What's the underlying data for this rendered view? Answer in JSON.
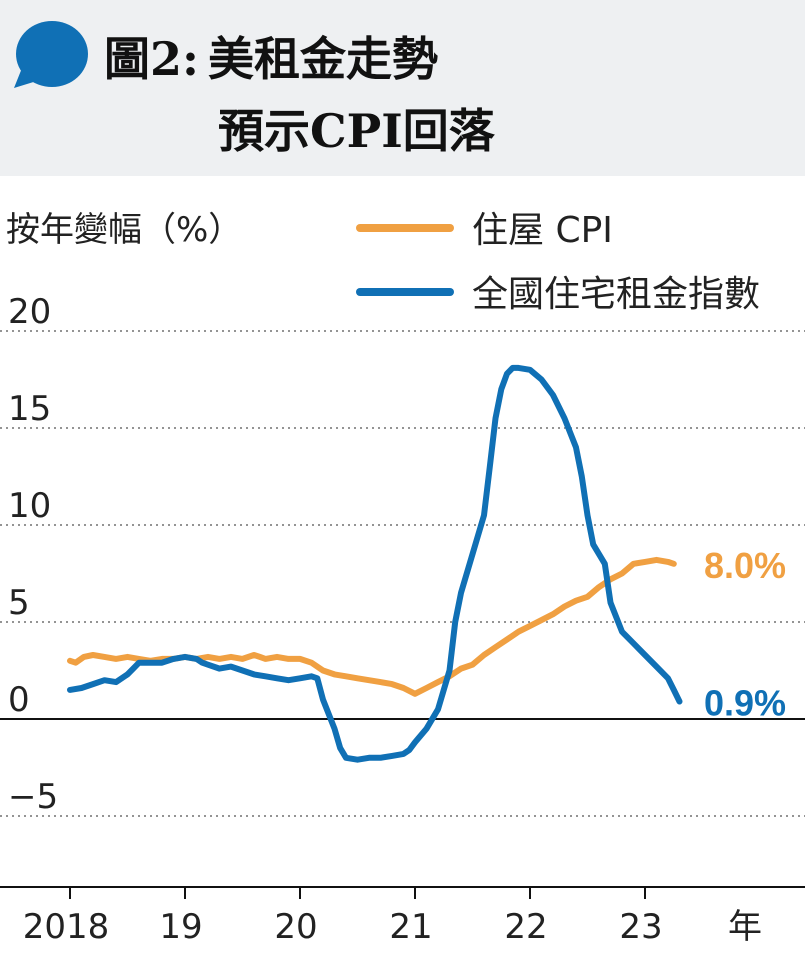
{
  "header": {
    "figure_label": "圖2:",
    "title_line1": "美租金走勢",
    "title_line2": "預示CPI回落"
  },
  "chart_data": {
    "type": "line",
    "ylabel": "按年變幅（%）",
    "xlabel": "年",
    "ylim": [
      -8.5,
      20
    ],
    "yticks": [
      20,
      15,
      10,
      5,
      0,
      -5
    ],
    "ytick_labels": [
      "20",
      "15",
      "10",
      "5",
      "0",
      "−5"
    ],
    "xlim": [
      2018,
      2024.2
    ],
    "xticks": [
      2018,
      2019,
      2020,
      2021,
      2022,
      2023
    ],
    "xtick_labels": [
      "2018",
      "19",
      "20",
      "21",
      "22",
      "23"
    ],
    "grid": "horizontal-dotted",
    "legend": "top-right",
    "series": [
      {
        "name": "住屋 CPI",
        "color": "#F0A042",
        "end_label": "8.0%",
        "points": [
          [
            2018.0,
            3.0
          ],
          [
            2018.05,
            2.9
          ],
          [
            2018.12,
            3.2
          ],
          [
            2018.2,
            3.3
          ],
          [
            2018.3,
            3.2
          ],
          [
            2018.4,
            3.1
          ],
          [
            2018.5,
            3.2
          ],
          [
            2018.6,
            3.1
          ],
          [
            2018.7,
            3.0
          ],
          [
            2018.8,
            3.1
          ],
          [
            2018.9,
            3.1
          ],
          [
            2019.0,
            3.2
          ],
          [
            2019.1,
            3.1
          ],
          [
            2019.2,
            3.2
          ],
          [
            2019.3,
            3.1
          ],
          [
            2019.4,
            3.2
          ],
          [
            2019.5,
            3.1
          ],
          [
            2019.6,
            3.3
          ],
          [
            2019.65,
            3.2
          ],
          [
            2019.7,
            3.1
          ],
          [
            2019.8,
            3.2
          ],
          [
            2019.9,
            3.1
          ],
          [
            2020.0,
            3.1
          ],
          [
            2020.1,
            2.9
          ],
          [
            2020.2,
            2.5
          ],
          [
            2020.3,
            2.3
          ],
          [
            2020.4,
            2.2
          ],
          [
            2020.5,
            2.1
          ],
          [
            2020.6,
            2.0
          ],
          [
            2020.7,
            1.9
          ],
          [
            2020.8,
            1.8
          ],
          [
            2020.9,
            1.6
          ],
          [
            2021.0,
            1.3
          ],
          [
            2021.1,
            1.6
          ],
          [
            2021.2,
            1.9
          ],
          [
            2021.3,
            2.2
          ],
          [
            2021.4,
            2.6
          ],
          [
            2021.5,
            2.8
          ],
          [
            2021.6,
            3.3
          ],
          [
            2021.7,
            3.7
          ],
          [
            2021.8,
            4.1
          ],
          [
            2021.9,
            4.5
          ],
          [
            2022.0,
            4.8
          ],
          [
            2022.1,
            5.1
          ],
          [
            2022.2,
            5.4
          ],
          [
            2022.3,
            5.8
          ],
          [
            2022.4,
            6.1
          ],
          [
            2022.5,
            6.3
          ],
          [
            2022.6,
            6.8
          ],
          [
            2022.7,
            7.2
          ],
          [
            2022.8,
            7.5
          ],
          [
            2022.9,
            8.0
          ],
          [
            2023.0,
            8.1
          ],
          [
            2023.1,
            8.2
          ],
          [
            2023.2,
            8.1
          ],
          [
            2023.25,
            8.0
          ]
        ]
      },
      {
        "name": "全國住宅租金指數",
        "color": "#1070B5",
        "end_label": "0.9%",
        "points": [
          [
            2018.0,
            1.5
          ],
          [
            2018.1,
            1.6
          ],
          [
            2018.2,
            1.8
          ],
          [
            2018.3,
            2.0
          ],
          [
            2018.4,
            1.9
          ],
          [
            2018.5,
            2.3
          ],
          [
            2018.55,
            2.6
          ],
          [
            2018.6,
            2.9
          ],
          [
            2018.7,
            2.9
          ],
          [
            2018.8,
            2.9
          ],
          [
            2018.9,
            3.1
          ],
          [
            2019.0,
            3.2
          ],
          [
            2019.1,
            3.1
          ],
          [
            2019.15,
            2.9
          ],
          [
            2019.2,
            2.8
          ],
          [
            2019.3,
            2.6
          ],
          [
            2019.4,
            2.7
          ],
          [
            2019.5,
            2.5
          ],
          [
            2019.6,
            2.3
          ],
          [
            2019.7,
            2.2
          ],
          [
            2019.8,
            2.1
          ],
          [
            2019.9,
            2.0
          ],
          [
            2020.0,
            2.1
          ],
          [
            2020.1,
            2.2
          ],
          [
            2020.15,
            2.1
          ],
          [
            2020.2,
            1.0
          ],
          [
            2020.3,
            -0.5
          ],
          [
            2020.35,
            -1.5
          ],
          [
            2020.4,
            -2.0
          ],
          [
            2020.5,
            -2.1
          ],
          [
            2020.6,
            -2.0
          ],
          [
            2020.7,
            -2.0
          ],
          [
            2020.8,
            -1.9
          ],
          [
            2020.9,
            -1.8
          ],
          [
            2020.95,
            -1.6
          ],
          [
            2021.0,
            -1.2
          ],
          [
            2021.1,
            -0.5
          ],
          [
            2021.2,
            0.5
          ],
          [
            2021.3,
            2.5
          ],
          [
            2021.35,
            5.0
          ],
          [
            2021.4,
            6.5
          ],
          [
            2021.5,
            8.5
          ],
          [
            2021.6,
            10.5
          ],
          [
            2021.65,
            13.0
          ],
          [
            2021.7,
            15.5
          ],
          [
            2021.75,
            17.0
          ],
          [
            2021.8,
            17.8
          ],
          [
            2021.85,
            18.1
          ],
          [
            2021.9,
            18.1
          ],
          [
            2022.0,
            18.0
          ],
          [
            2022.1,
            17.5
          ],
          [
            2022.2,
            16.7
          ],
          [
            2022.3,
            15.5
          ],
          [
            2022.4,
            14.0
          ],
          [
            2022.45,
            12.5
          ],
          [
            2022.5,
            10.5
          ],
          [
            2022.55,
            9.0
          ],
          [
            2022.65,
            8.0
          ],
          [
            2022.7,
            6.0
          ],
          [
            2022.8,
            4.5
          ],
          [
            2022.9,
            3.9
          ],
          [
            2023.0,
            3.3
          ],
          [
            2023.1,
            2.7
          ],
          [
            2023.2,
            2.1
          ],
          [
            2023.25,
            1.5
          ],
          [
            2023.3,
            0.9
          ]
        ]
      }
    ]
  }
}
